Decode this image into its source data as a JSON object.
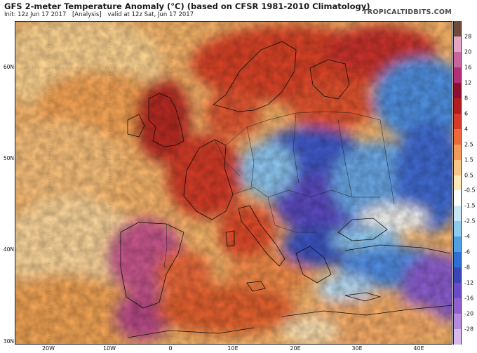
{
  "header": {
    "title": "GFS 2-meter Temperature Anomaly (°C) (based on CFSR 1981-2010 Climatology)",
    "init": "Init: 12z Jun 17 2017",
    "analysis": "[Analysis]",
    "valid": "valid at 12z Sat, Jun 17 2017",
    "brand": "TROPICALTIDBITS.COM"
  },
  "axes": {
    "lat_labels": [
      "60N",
      "50N",
      "40N",
      "30N"
    ],
    "lon_labels": [
      "20W",
      "10W",
      "0",
      "10E",
      "20E",
      "30E",
      "40E"
    ]
  },
  "colorbar": {
    "labels": [
      "28",
      "20",
      "16",
      "12",
      "8",
      "6",
      "4",
      "2.5",
      "1.5",
      "0.5",
      "-0.5",
      "-1.5",
      "-2.5",
      "-4",
      "-6",
      "-8",
      "-12",
      "-16",
      "-20",
      "-28"
    ],
    "colors": [
      "#6e4a3a",
      "#e2a4c2",
      "#c7659c",
      "#b0307a",
      "#8e1030",
      "#b21d1f",
      "#d9392a",
      "#ec6a3a",
      "#f39a5a",
      "#f8c684",
      "#fde8b8",
      "#ffffff",
      "#c8e6f6",
      "#8ec9ef",
      "#4f9fe2",
      "#2f6fd2",
      "#3a46b8",
      "#6b4bc6",
      "#9060cf",
      "#b48adc",
      "#d7b8ea"
    ]
  }
}
